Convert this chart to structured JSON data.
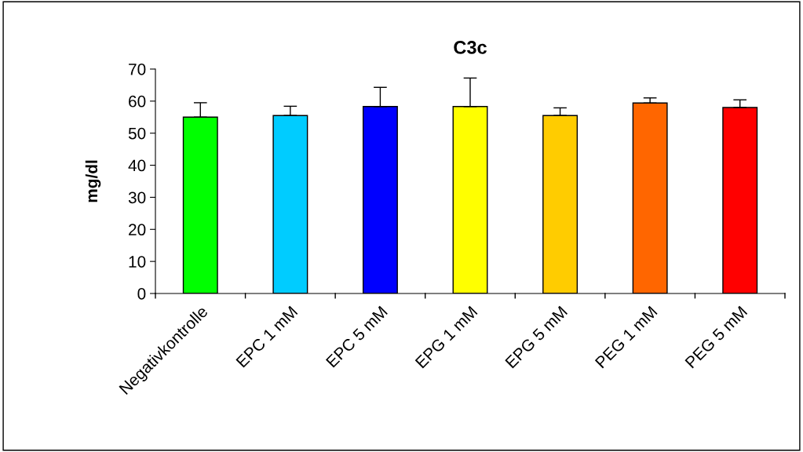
{
  "chart_data": {
    "type": "bar",
    "title": "C3c",
    "ylabel": "mg/dl",
    "categories": [
      "Negativkontrolle",
      "EPC 1 mM",
      "EPC 5 mM",
      "EPG 1 mM",
      "EPG 5 mM",
      "PEG 1 mM",
      "PEG 5 mM"
    ],
    "values": [
      55,
      55.5,
      58.3,
      58.3,
      55.5,
      59.4,
      58
    ],
    "colors": [
      "#00ff00",
      "#00ccff",
      "#0000ff",
      "#ffff00",
      "#ffcc00",
      "#ff6600",
      "#ff0000"
    ],
    "errors": [
      [
        55,
        59.5
      ],
      [
        55.5,
        58.4
      ],
      [
        58.3,
        64.3
      ],
      [
        58.3,
        67.2
      ],
      [
        55.5,
        57.9
      ],
      [
        59.4,
        61
      ],
      [
        58,
        60.4
      ]
    ],
    "ylim": [
      0,
      70
    ],
    "yticks": [
      0,
      10,
      20,
      30,
      40,
      50,
      60,
      70
    ],
    "grid": false,
    "legend": false
  }
}
